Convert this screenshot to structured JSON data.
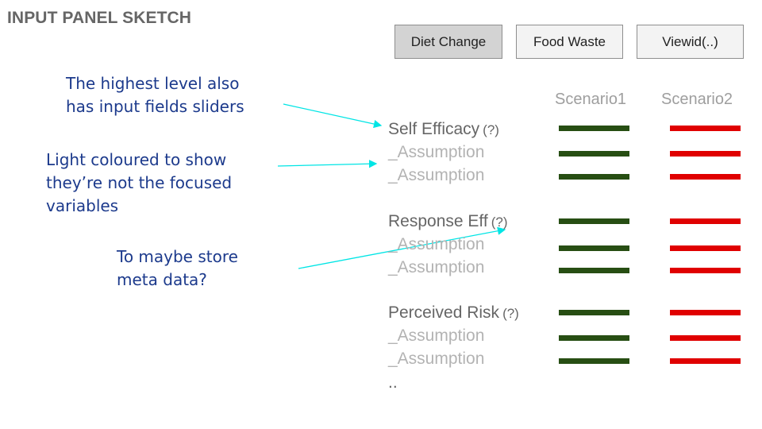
{
  "title": "INPUT PANEL SKETCH",
  "tabs": [
    {
      "label": "Diet Change",
      "active": true
    },
    {
      "label": "Food Waste",
      "active": false
    },
    {
      "label": "Viewid(..)",
      "active": false
    }
  ],
  "annotations": [
    {
      "lines": [
        "The highest level also",
        "has input fields sliders"
      ]
    },
    {
      "lines": [
        "Light coloured to show",
        "they’re not the focused",
        "variables"
      ]
    },
    {
      "lines": [
        "To maybe store",
        "meta data?"
      ]
    }
  ],
  "columns": [
    "Scenario1",
    "Scenario2"
  ],
  "groups": [
    {
      "label": "Self Efficacy",
      "help": "(?)",
      "assumptions": [
        "_Assumption",
        "_Assumption"
      ]
    },
    {
      "label": "Response Eff",
      "help": "(?)",
      "assumptions": [
        "_Assumption",
        "_Assumption"
      ]
    },
    {
      "label": "Perceived Risk",
      "help": "(?)",
      "assumptions": [
        "_Assumption",
        "_Assumption"
      ]
    }
  ],
  "more": "..",
  "colors": {
    "scenario1": "#274e13",
    "scenario2": "#e00000",
    "annotation_text": "#1c3a8c",
    "arrow": "#00e5e5"
  }
}
